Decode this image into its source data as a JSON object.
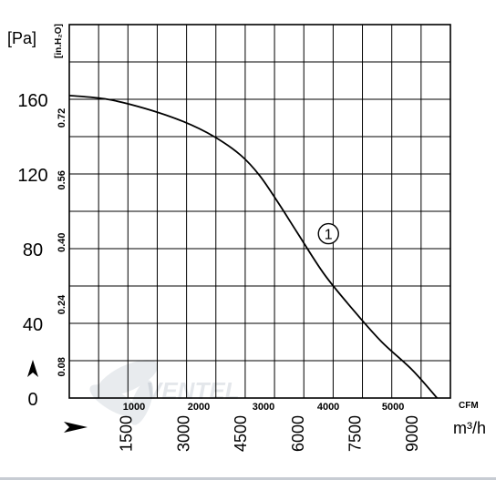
{
  "chart_data": {
    "type": "line",
    "title": "",
    "y_primary": {
      "unit": "[Pa]",
      "ticks": [
        0,
        40,
        80,
        120,
        160
      ],
      "tick_labels": [
        "0",
        "40",
        "80",
        "120",
        "160"
      ],
      "range": [
        0,
        200
      ]
    },
    "y_secondary": {
      "unit": "[in.H₂O]",
      "ticks": [
        0.08,
        0.24,
        0.4,
        0.56,
        0.72
      ],
      "tick_labels": [
        "0.08",
        "0.24",
        "0.40",
        "0.56",
        "0.72"
      ]
    },
    "x_primary": {
      "unit": "m³/h",
      "ticks": [
        1500,
        3000,
        4500,
        6000,
        7500,
        9000
      ],
      "tick_labels": [
        "1500",
        "3000",
        "4500",
        "6000",
        "7500",
        "9000"
      ],
      "range": [
        0,
        10000
      ]
    },
    "x_secondary": {
      "unit": "CFM",
      "ticks": [
        1000,
        2000,
        3000,
        4000,
        5000
      ],
      "tick_labels": [
        "1000",
        "2000",
        "3000",
        "4000",
        "5000"
      ]
    },
    "grid": true,
    "series": [
      {
        "name": "①",
        "x": [
          0,
          1000,
          2000,
          3000,
          3800,
          4500,
          5000,
          5500,
          6000,
          6700,
          7500,
          8200,
          9000,
          9650
        ],
        "y": [
          162,
          160,
          155,
          148,
          140,
          130,
          119,
          104,
          88,
          66,
          46,
          30,
          15,
          0
        ]
      }
    ],
    "annotations": [
      {
        "text": "①",
        "x": 6800,
        "y": 88
      }
    ],
    "watermark": "VENTEL"
  }
}
